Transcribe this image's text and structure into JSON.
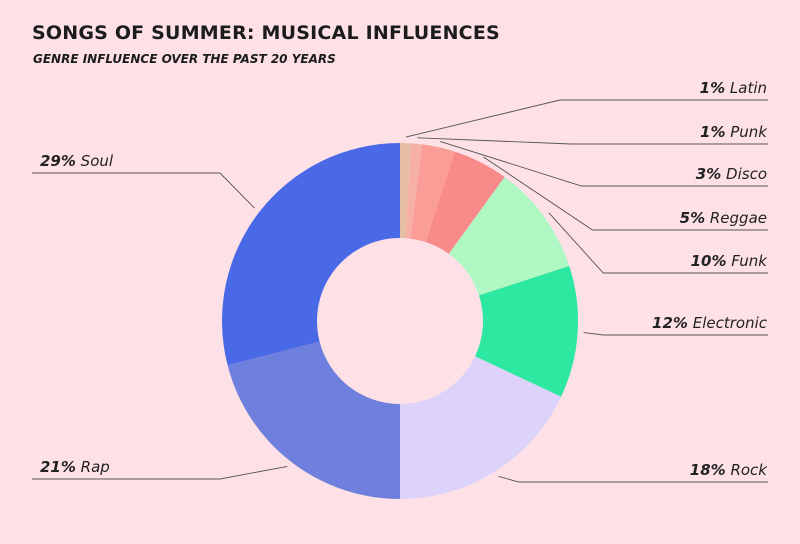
{
  "title": "SONGS OF SUMMER: MUSICAL INFLUENCES",
  "subtitle": "GENRE INFLUENCE OVER THE PAST 20 YEARS",
  "chart_data": {
    "type": "pie",
    "donut": true,
    "title": "SONGS OF SUMMER: MUSICAL INFLUENCES",
    "subtitle": "GENRE INFLUENCE OVER THE PAST 20 YEARS",
    "slices": [
      {
        "label": "Latin",
        "value": 1,
        "pct_text": "1%",
        "color": "#e6bea3"
      },
      {
        "label": "Punk",
        "value": 1,
        "pct_text": "1%",
        "color": "#f7b0a6"
      },
      {
        "label": "Disco",
        "value": 3,
        "pct_text": "3%",
        "color": "#fa9d96"
      },
      {
        "label": "Reggae",
        "value": 5,
        "pct_text": "5%",
        "color": "#f88a89"
      },
      {
        "label": "Funk",
        "value": 10,
        "pct_text": "10%",
        "color": "#b0f8c3"
      },
      {
        "label": "Electronic",
        "value": 12,
        "pct_text": "12%",
        "color": "#2de8a0"
      },
      {
        "label": "Rock",
        "value": 18,
        "pct_text": "18%",
        "color": "#ddd2fa"
      },
      {
        "label": "Rap",
        "value": 21,
        "pct_text": "21%",
        "color": "#6f7fdd"
      },
      {
        "label": "Soul",
        "value": 29,
        "pct_text": "29%",
        "color": "#4a69e7"
      }
    ],
    "legend": "callout labels with leader lines"
  }
}
